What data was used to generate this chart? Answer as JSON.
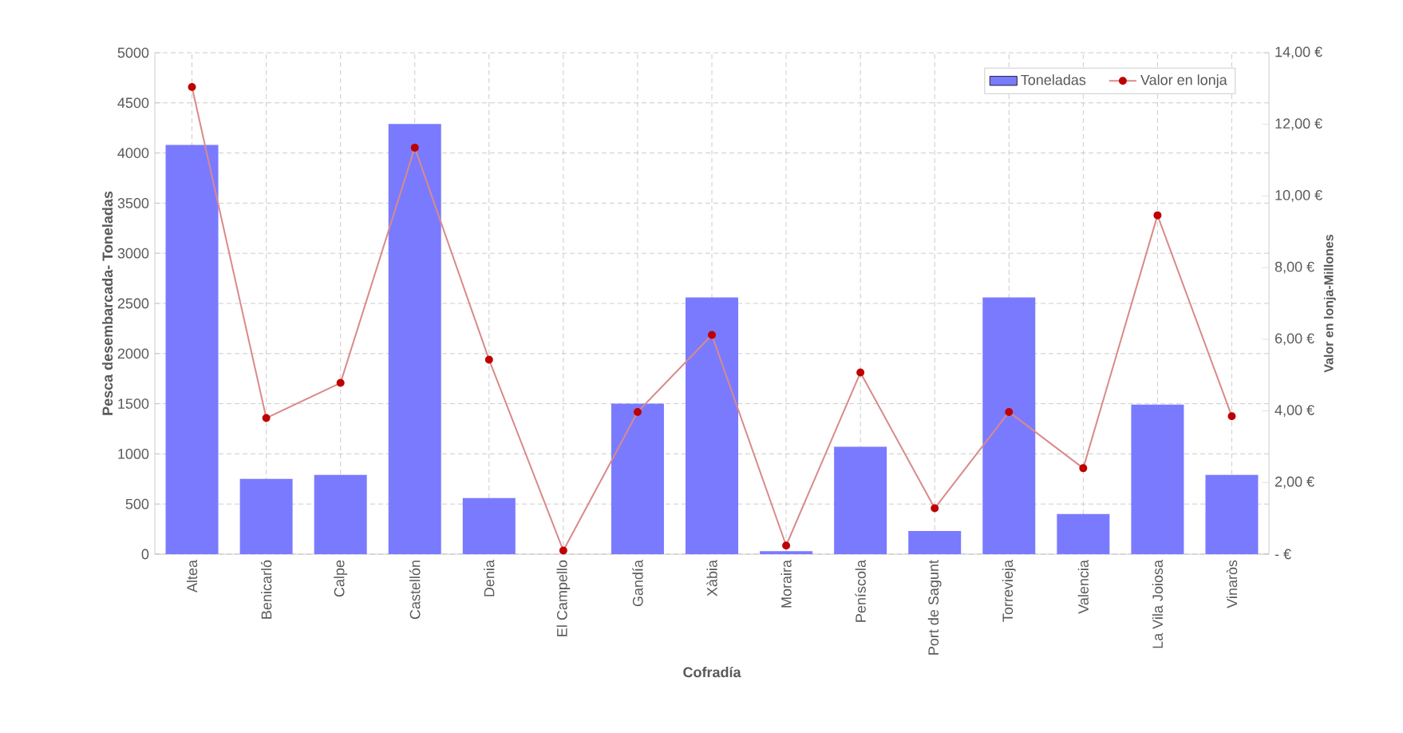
{
  "chart_data": {
    "type": "bar",
    "xlabel": "Cofradía",
    "ylabel": "Pesca desembarcada- Toneladas",
    "y2label": "Valor en lonja-Millones",
    "categories": [
      "Altea",
      "Benicarló",
      "Calpe",
      "Castellón",
      "Denia",
      "El Campello",
      "Gandía",
      "Xàbia",
      "Moraira",
      "Peníscola",
      "Port de Sagunt",
      "Torrevieja",
      "Valencia",
      "La Vila Joiosa",
      "Vinaròs"
    ],
    "series": [
      {
        "name": "Toneladas",
        "color": "#7a7aff",
        "values": [
          4080,
          750,
          790,
          4290,
          560,
          0,
          1500,
          2560,
          30,
          1070,
          230,
          2560,
          400,
          1490,
          790
        ]
      },
      {
        "name": "Valor en lonja",
        "type": "line",
        "axis": "y2",
        "color": "#d98a8a",
        "marker": "circle",
        "values": [
          13.04,
          3.8,
          4.78,
          11.35,
          5.43,
          0.1,
          3.97,
          6.12,
          0.24,
          5.07,
          1.28,
          3.97,
          2.4,
          9.46,
          3.85
        ]
      }
    ],
    "ylim": [
      0,
      5000
    ],
    "yticks": [
      0,
      500,
      1000,
      1500,
      2000,
      2500,
      3000,
      3500,
      4000,
      4500,
      5000
    ],
    "y2lim": [
      0,
      14
    ],
    "y2ticks": [
      {
        "value": 0,
        "label": "-   €"
      },
      {
        "value": 2,
        "label": "2,00 €"
      },
      {
        "value": 4,
        "label": "4,00 €"
      },
      {
        "value": 6,
        "label": "6,00 €"
      },
      {
        "value": 8,
        "label": "8,00 €"
      },
      {
        "value": 10,
        "label": "10,00 €"
      },
      {
        "value": 12,
        "label": "12,00 €"
      },
      {
        "value": 14,
        "label": "14,00 €"
      }
    ],
    "grid": true,
    "legend": "top right"
  }
}
